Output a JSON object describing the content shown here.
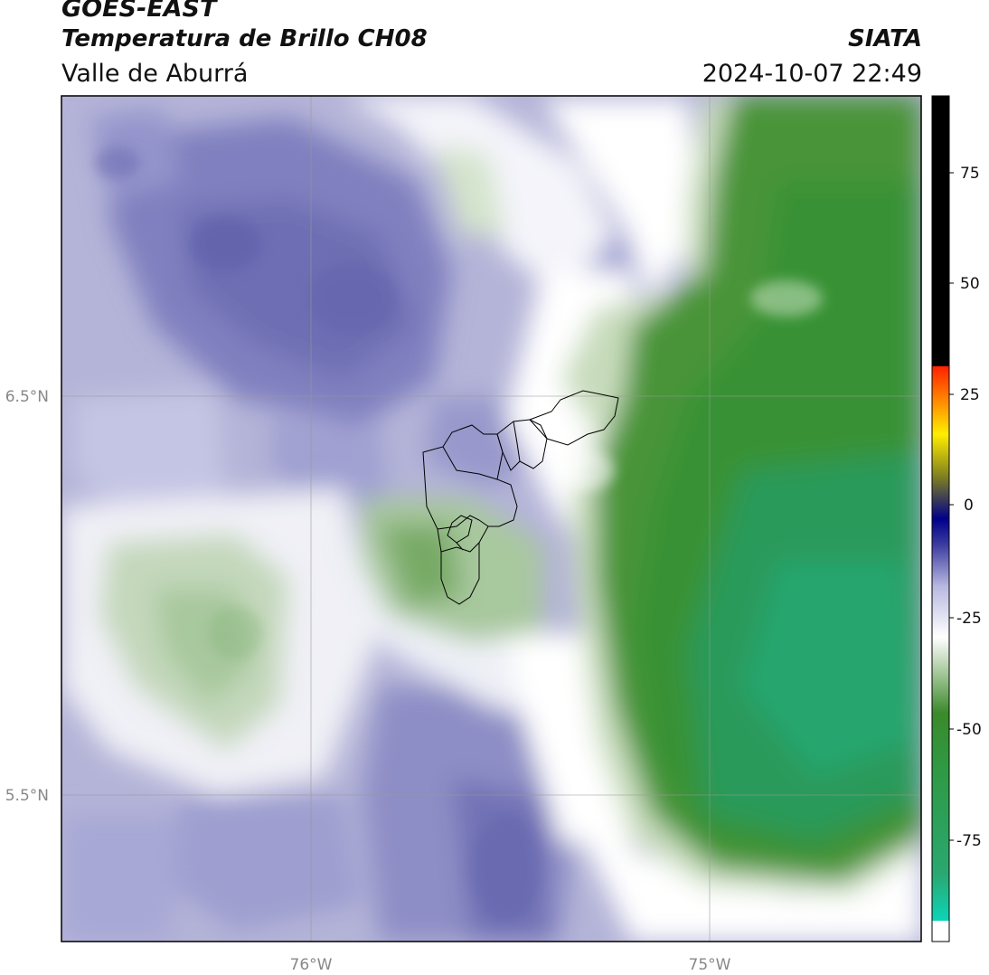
{
  "header": {
    "satellite": "GOES-EAST",
    "product": "Temperatura de Brillo CH08",
    "region": "Valle de Aburrá",
    "org": "SIATA",
    "datetime": "2024-10-07 22:49"
  },
  "map": {
    "lat_labels": [
      "6.5°N",
      "5.5°N"
    ],
    "lon_labels": [
      "76°W",
      "75°W"
    ]
  },
  "colorbar": {
    "ticks": [
      "75",
      "50",
      "25",
      "0",
      "-25",
      "-50",
      "-75"
    ],
    "colors": {
      "top": "#000000",
      "red": "#ff2200",
      "orange": "#ff8800",
      "yellow": "#ffee00",
      "olive": "#808020",
      "navy": "#00008a",
      "blue": "#3a3aa0",
      "lavender": "#b8b8e0",
      "white": "#ffffff",
      "lightgreen": "#c0d8b8",
      "green": "#3a8a2a",
      "teal": "#2aa870",
      "cyan": "#00e8d8"
    }
  }
}
